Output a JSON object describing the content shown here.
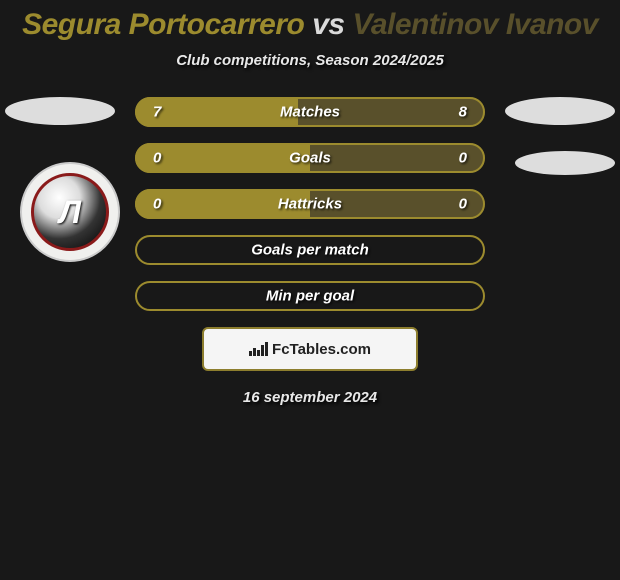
{
  "title": {
    "player1": "Segura Portocarrero",
    "vs": "vs",
    "player2": "Valentinov Ivanov",
    "player1_color": "#9c8b2e",
    "player2_color": "#59502b",
    "vs_color": "#dadada"
  },
  "subtitle": "Club competitions, Season 2024/2025",
  "badge_letter": "Л",
  "bars": [
    {
      "label": "Matches",
      "left_val": "7",
      "right_val": "8",
      "left_pct": 46.7,
      "left_color": "#9c8b2e",
      "right_color": "#59502b",
      "outline_color": "#9c8b2e"
    },
    {
      "label": "Goals",
      "left_val": "0",
      "right_val": "0",
      "left_pct": 50,
      "left_color": "#9c8b2e",
      "right_color": "#59502b",
      "outline_color": "#9c8b2e"
    },
    {
      "label": "Hattricks",
      "left_val": "0",
      "right_val": "0",
      "left_pct": 50,
      "left_color": "#9c8b2e",
      "right_color": "#59502b",
      "outline_color": "#9c8b2e"
    },
    {
      "label": "Goals per match",
      "left_val": "",
      "right_val": "",
      "left_pct": 0,
      "left_color": "#9c8b2e",
      "right_color": "transparent",
      "outline_color": "#9c8b2e"
    },
    {
      "label": "Min per goal",
      "left_val": "",
      "right_val": "",
      "left_pct": 0,
      "left_color": "#9c8b2e",
      "right_color": "transparent",
      "outline_color": "#9c8b2e"
    }
  ],
  "footer_brand": "FcTables.com",
  "date": "16 september 2024",
  "colors": {
    "background": "#181818",
    "oval": "#e8e8e8"
  }
}
